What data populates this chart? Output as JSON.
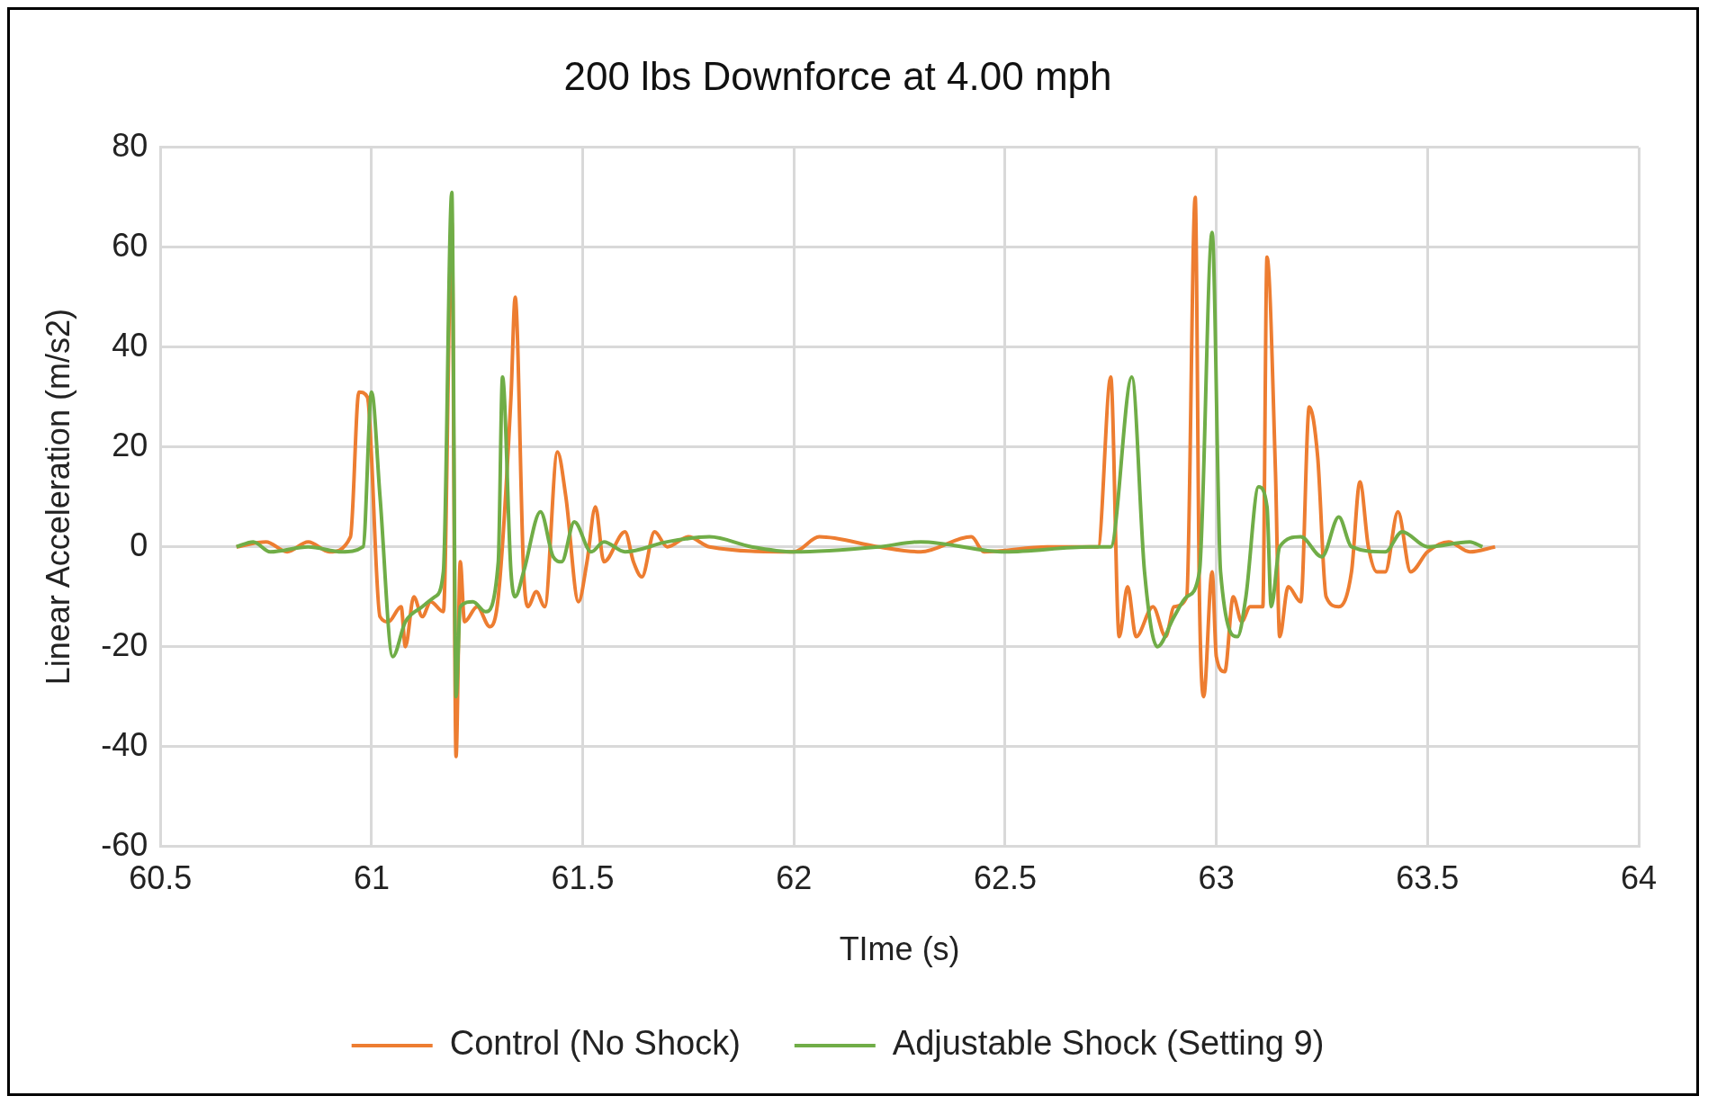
{
  "chart_data": {
    "type": "line",
    "title": "200 lbs Downforce at 4.00 mph",
    "xlabel": "TIme (s)",
    "ylabel": "Linear Acceleration (m/s2)",
    "xlim": [
      60.5,
      64
    ],
    "xticks": [
      60.5,
      61,
      61.5,
      62,
      62.5,
      63,
      63.5,
      64
    ],
    "ylim": [
      -60,
      80
    ],
    "yticks": [
      -60,
      -40,
      -20,
      0,
      20,
      40,
      60,
      80
    ],
    "grid": true,
    "legend": "bottom",
    "marker": "none",
    "line_style": "solid",
    "series": [
      {
        "name": "Control (No Shock)",
        "color": "#ed7d31",
        "x": [
          60.68,
          60.75,
          60.8,
          60.85,
          60.9,
          60.95,
          60.97,
          60.99,
          61.02,
          61.04,
          61.07,
          61.08,
          61.1,
          61.12,
          61.14,
          61.17,
          61.19,
          61.2,
          61.21,
          61.22,
          61.25,
          61.28,
          61.3,
          61.33,
          61.34,
          61.36,
          61.37,
          61.39,
          61.41,
          61.44,
          61.46,
          61.49,
          61.51,
          61.53,
          61.55,
          61.6,
          61.62,
          61.64,
          61.67,
          61.7,
          61.75,
          61.8,
          62,
          62.06,
          62.2,
          62.3,
          62.42,
          62.45,
          62.6,
          62.72,
          62.75,
          62.77,
          62.79,
          62.81,
          62.85,
          62.88,
          62.9,
          62.93,
          62.95,
          62.96,
          62.97,
          62.99,
          63,
          63.02,
          63.04,
          63.06,
          63.08,
          63.11,
          63.12,
          63.14,
          63.15,
          63.17,
          63.2,
          63.22,
          63.24,
          63.26,
          63.29,
          63.32,
          63.34,
          63.36,
          63.38,
          63.4,
          63.43,
          63.46,
          63.5,
          63.55,
          63.6,
          63.66
        ],
        "values": [
          0,
          1,
          -1,
          1,
          -1,
          2,
          31,
          30,
          -14,
          -15,
          -12,
          -20,
          -10,
          -14,
          -11,
          -13,
          65,
          -42,
          -3,
          -15,
          -12,
          -16,
          -10,
          30,
          50,
          -5,
          -12,
          -9,
          -12,
          19,
          10,
          -11,
          -3,
          8,
          -3,
          3,
          -3,
          -6,
          3,
          0,
          2,
          0,
          -1,
          2,
          0,
          -1,
          2,
          -1,
          0,
          0,
          34,
          -18,
          -8,
          -18,
          -12,
          -18,
          -12,
          -10,
          70,
          -10,
          -30,
          -5,
          -22,
          -25,
          -10,
          -15,
          -12,
          -12,
          58,
          15,
          -18,
          -8,
          -11,
          28,
          18,
          -10,
          -12,
          -5,
          13,
          0,
          -5,
          -5,
          7,
          -5,
          -1,
          1,
          -1,
          0
        ]
      },
      {
        "name": "Adjustable Shock (Setting 9)",
        "color": "#70ad47",
        "x": [
          60.68,
          60.72,
          60.76,
          60.85,
          60.93,
          60.98,
          61,
          61.02,
          61.05,
          61.08,
          61.12,
          61.15,
          61.17,
          61.19,
          61.2,
          61.21,
          61.24,
          61.27,
          61.3,
          61.31,
          61.33,
          61.34,
          61.36,
          61.4,
          61.43,
          61.45,
          61.48,
          61.52,
          61.55,
          61.6,
          61.7,
          61.8,
          61.9,
          62,
          62.2,
          62.3,
          62.5,
          62.7,
          62.75,
          62.8,
          62.83,
          62.86,
          62.9,
          62.93,
          62.96,
          62.99,
          63.01,
          63.05,
          63.07,
          63.1,
          63.12,
          63.13,
          63.15,
          63.2,
          63.25,
          63.29,
          63.32,
          63.4,
          63.44,
          63.5,
          63.6,
          63.63
        ],
        "values": [
          0,
          1,
          -1,
          0,
          -1,
          0,
          31,
          10,
          -22,
          -15,
          -12,
          -10,
          -5,
          71,
          -30,
          -12,
          -11,
          -13,
          -3,
          34,
          -5,
          -10,
          -5,
          7,
          -2,
          -3,
          5,
          -1,
          1,
          -1,
          1,
          2,
          0,
          -1,
          0,
          1,
          -1,
          0,
          0,
          34,
          -5,
          -20,
          -14,
          -10,
          -5,
          63,
          -5,
          -18,
          -10,
          12,
          8,
          -12,
          0,
          2,
          -2,
          6,
          0,
          -1,
          3,
          0,
          1,
          0
        ]
      }
    ]
  }
}
